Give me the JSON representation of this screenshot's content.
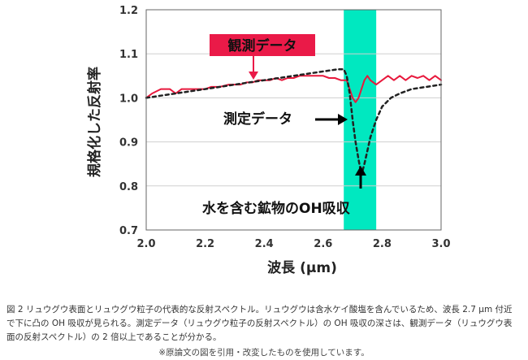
{
  "chart_data": {
    "type": "line",
    "xlabel": "波長 (μm)",
    "ylabel": "規格化した反射率",
    "xlim": [
      2.0,
      3.0
    ],
    "ylim": [
      0.7,
      1.2
    ],
    "xticks": [
      "2.0",
      "2.2",
      "2.4",
      "2.6",
      "2.8",
      "3.0"
    ],
    "yticks": [
      "0.7",
      "0.8",
      "0.9",
      "1.0",
      "1.1",
      "1.2"
    ],
    "band": {
      "range": [
        2.67,
        2.78
      ],
      "color": "#00e8c0"
    },
    "series": [
      {
        "name": "観測データ",
        "color": "#e8183c",
        "style": "solid",
        "x": [
          2.0,
          2.02,
          2.05,
          2.08,
          2.1,
          2.12,
          2.15,
          2.18,
          2.2,
          2.22,
          2.25,
          2.28,
          2.3,
          2.32,
          2.34,
          2.36,
          2.38,
          2.4,
          2.42,
          2.44,
          2.46,
          2.48,
          2.5,
          2.52,
          2.54,
          2.56,
          2.58,
          2.6,
          2.62,
          2.64,
          2.66,
          2.68,
          2.69,
          2.7,
          2.71,
          2.72,
          2.73,
          2.74,
          2.75,
          2.76,
          2.78,
          2.8,
          2.82,
          2.84,
          2.86,
          2.88,
          2.9,
          2.92,
          2.94,
          2.96,
          2.98,
          3.0
        ],
        "y": [
          1.0,
          1.01,
          1.02,
          1.02,
          1.01,
          1.02,
          1.02,
          1.02,
          1.02,
          1.025,
          1.025,
          1.03,
          1.03,
          1.03,
          1.035,
          1.035,
          1.04,
          1.04,
          1.04,
          1.045,
          1.04,
          1.045,
          1.045,
          1.05,
          1.05,
          1.05,
          1.05,
          1.05,
          1.045,
          1.045,
          1.04,
          1.04,
          1.02,
          1.0,
          0.99,
          1.0,
          1.02,
          1.04,
          1.05,
          1.04,
          1.03,
          1.04,
          1.05,
          1.04,
          1.05,
          1.04,
          1.05,
          1.045,
          1.05,
          1.04,
          1.05,
          1.04
        ]
      },
      {
        "name": "測定データ",
        "color": "#222222",
        "style": "dashed",
        "x": [
          2.0,
          2.05,
          2.1,
          2.15,
          2.2,
          2.25,
          2.3,
          2.35,
          2.4,
          2.45,
          2.5,
          2.55,
          2.6,
          2.63,
          2.65,
          2.67,
          2.68,
          2.69,
          2.7,
          2.71,
          2.72,
          2.73,
          2.74,
          2.75,
          2.76,
          2.78,
          2.8,
          2.83,
          2.86,
          2.9,
          2.95,
          3.0
        ],
        "y": [
          1.0,
          1.005,
          1.01,
          1.015,
          1.02,
          1.025,
          1.03,
          1.035,
          1.04,
          1.045,
          1.05,
          1.055,
          1.06,
          1.063,
          1.065,
          1.065,
          1.05,
          1.01,
          0.95,
          0.9,
          0.86,
          0.825,
          0.85,
          0.88,
          0.91,
          0.95,
          0.98,
          1.0,
          1.01,
          1.02,
          1.025,
          1.03
        ]
      }
    ],
    "annotations": [
      {
        "text": "観測データ",
        "style": "boxed-red"
      },
      {
        "text": "測定データ"
      },
      {
        "text": "水を含む鉱物のOH吸収"
      }
    ]
  },
  "caption": {
    "line1": "図 2  リュウグウ表面とリュウグウ粒子の代表的な反射スペクトル。リュウグウは含水ケイ酸塩を含んでいるため、波長 2.7 µm 付近",
    "line2": "で下に凸の OH 吸収が見られる。測定データ（リュウグウ粒子の反射スペクトル）の OH 吸収の深さは、観測データ（リュウグウ表",
    "line3": "面の反射スペクトル）の 2 倍以上であることが分かる。",
    "note": "※原論文の図を引用・改変したものを使用しています。"
  }
}
